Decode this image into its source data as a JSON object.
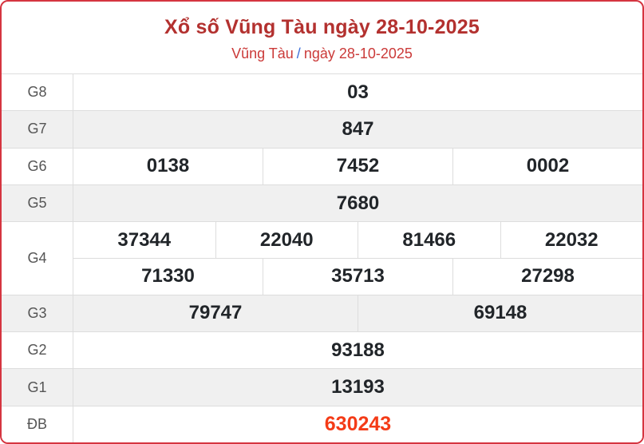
{
  "header": {
    "title": "Xổ số Vũng Tàu ngày 28-10-2025",
    "breadcrumb": {
      "province": "Vũng Tàu",
      "separator": "/",
      "date": "ngày 28-10-2025"
    }
  },
  "colors": {
    "card_border_red": "#d53540",
    "title_red": "#b3312f",
    "subtitle_red": "#cb3a39",
    "breadcrumb_separator_blue": "#3e6fd8",
    "row_shaded_bg": "#f0f0f0",
    "prize_label_gray": "#555555",
    "number_dark": "#212529",
    "special_prize_red": "#f43b17",
    "grid_line": "#dddddd"
  },
  "table": {
    "rows": [
      {
        "label": "G8",
        "lines": [
          [
            "03"
          ]
        ],
        "special": false
      },
      {
        "label": "G7",
        "lines": [
          [
            "847"
          ]
        ],
        "special": false
      },
      {
        "label": "G6",
        "lines": [
          [
            "0138",
            "7452",
            "0002"
          ]
        ],
        "special": false
      },
      {
        "label": "G5",
        "lines": [
          [
            "7680"
          ]
        ],
        "special": false
      },
      {
        "label": "G4",
        "lines": [
          [
            "37344",
            "22040",
            "81466",
            "22032"
          ],
          [
            "71330",
            "35713",
            "27298"
          ]
        ],
        "special": false
      },
      {
        "label": "G3",
        "lines": [
          [
            "79747",
            "69148"
          ]
        ],
        "special": false
      },
      {
        "label": "G2",
        "lines": [
          [
            "93188"
          ]
        ],
        "special": false
      },
      {
        "label": "G1",
        "lines": [
          [
            "13193"
          ]
        ],
        "special": false
      },
      {
        "label": "ĐB",
        "lines": [
          [
            "630243"
          ]
        ],
        "special": true
      }
    ]
  }
}
